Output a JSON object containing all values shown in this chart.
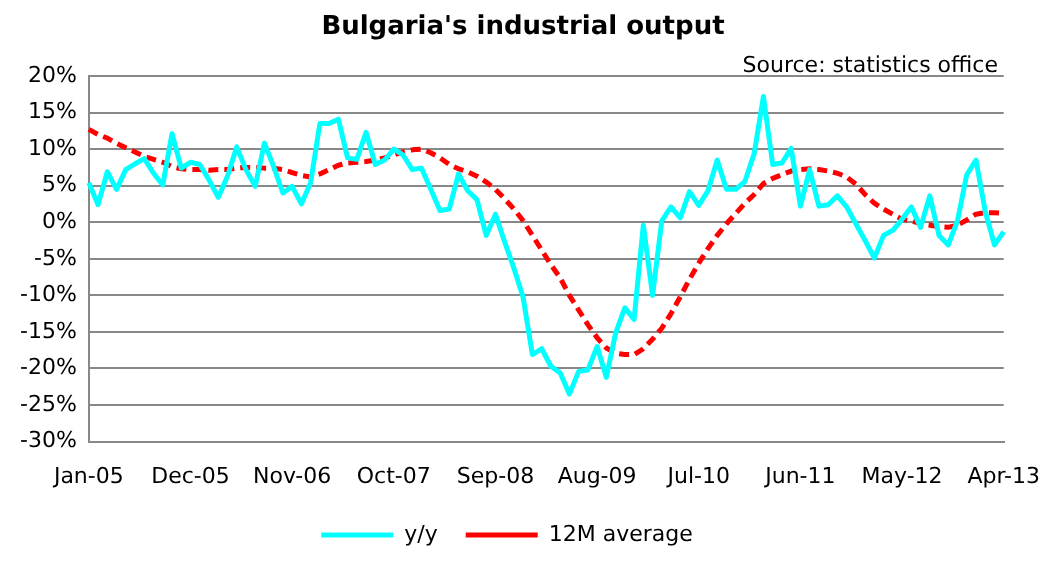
{
  "chart_data": {
    "type": "line",
    "title": "Bulgaria's industrial output",
    "annotations": [
      "Source: statistics office"
    ],
    "categories": [
      "Jan-05",
      null,
      null,
      null,
      null,
      null,
      null,
      null,
      null,
      null,
      null,
      "Dec-05",
      null,
      null,
      null,
      null,
      null,
      null,
      null,
      null,
      null,
      null,
      "Nov-06",
      null,
      null,
      null,
      null,
      null,
      null,
      null,
      null,
      null,
      null,
      "Oct-07",
      null,
      null,
      null,
      null,
      null,
      null,
      null,
      null,
      null,
      null,
      "Sep-08",
      null,
      null,
      null,
      null,
      null,
      null,
      null,
      null,
      null,
      null,
      "Aug-09",
      null,
      null,
      null,
      null,
      null,
      null,
      null,
      null,
      null,
      null,
      "Jul-10",
      null,
      null,
      null,
      null,
      null,
      null,
      null,
      null,
      null,
      null,
      "Jun-11",
      null,
      null,
      null,
      null,
      null,
      null,
      null,
      null,
      null,
      null,
      "May-12",
      null,
      null,
      null,
      null,
      null,
      null,
      null,
      null,
      null,
      null,
      "Apr-13"
    ],
    "series": [
      {
        "name": "y/y",
        "color": "#00ffff",
        "line_style": "solid",
        "values": [
          5.4,
          2.4,
          6.9,
          4.5,
          7.2,
          8,
          8.7,
          6.7,
          5.1,
          12.1,
          7.4,
          8.2,
          7.9,
          5.8,
          3.4,
          6.3,
          10.3,
          7.2,
          4.9,
          10.8,
          7.6,
          4,
          4.9,
          2.5,
          5.4,
          13.5,
          13.5,
          14.1,
          8.8,
          8.6,
          12.3,
          7.9,
          8.5,
          10,
          9.2,
          7.2,
          7.4,
          4.5,
          1.6,
          1.8,
          6.6,
          4.3,
          3.1,
          -1.8,
          1.1,
          -2.7,
          -6.3,
          -10.3,
          -18.1,
          -17.3,
          -19.7,
          -20.6,
          -23.5,
          -20.4,
          -20.2,
          -17,
          -21.2,
          -15.2,
          -11.7,
          -13.3,
          -0.4,
          -10,
          0.2,
          2.1,
          0.6,
          4.2,
          2.3,
          4.3,
          8.5,
          4.5,
          4.5,
          5.6,
          9.4,
          17.2,
          7.9,
          8.1,
          10.1,
          2.2,
          7.2,
          2.2,
          2.4,
          3.6,
          2.1,
          -0.2,
          -2.5,
          -4.9,
          -1.8,
          -1.1,
          0.4,
          2.1,
          -0.7,
          3.6,
          -1.8,
          -3.1,
          0.2,
          6.5,
          8.5,
          1.5,
          -3.1,
          -1.3
        ]
      },
      {
        "name": "12M average",
        "color": "#ff0000",
        "line_style": "dashed",
        "values": [
          12.7,
          12,
          11.5,
          10.8,
          10.2,
          9.6,
          9,
          8.6,
          8.2,
          7.6,
          7.3,
          7.2,
          7.2,
          7.1,
          7.2,
          7.2,
          7.4,
          7.5,
          7.5,
          7.4,
          7.4,
          7.2,
          6.8,
          6.4,
          6.2,
          6.6,
          7.2,
          7.8,
          8.1,
          8.2,
          8.3,
          8.5,
          8.8,
          9.2,
          9.6,
          9.9,
          10,
          9.5,
          8.8,
          7.9,
          7.3,
          6.9,
          6.3,
          5.5,
          4.5,
          3.2,
          1.8,
          0.2,
          -1.8,
          -3.8,
          -5.8,
          -7.6,
          -10,
          -12,
          -14,
          -15.8,
          -17.2,
          -17.9,
          -18.1,
          -18.1,
          -17.3,
          -16,
          -14.5,
          -12.5,
          -10.2,
          -7.8,
          -5.6,
          -3.6,
          -1.8,
          -0.2,
          1.2,
          2.6,
          3.8,
          5.3,
          6,
          6.5,
          7,
          7.2,
          7.3,
          7.2,
          7,
          6.7,
          6.2,
          5.2,
          3.8,
          2.6,
          1.8,
          1.1,
          0.4,
          0.2,
          -0.2,
          -0.4,
          -0.6,
          -0.7,
          -0.4,
          0.3,
          1.1,
          1.3,
          1.3,
          1.2
        ]
      }
    ],
    "ylim": [
      -30,
      20
    ],
    "yticks": [
      {
        "value": -30,
        "label": "-30%"
      },
      {
        "value": -25,
        "label": "-25%"
      },
      {
        "value": -20,
        "label": "-20%"
      },
      {
        "value": -15,
        "label": "-15%"
      },
      {
        "value": -10,
        "label": "-10%"
      },
      {
        "value": -5,
        "label": "-5%"
      },
      {
        "value": 0,
        "label": "0%"
      },
      {
        "value": 5,
        "label": "5%"
      },
      {
        "value": 10,
        "label": "10%"
      },
      {
        "value": 15,
        "label": "15%"
      },
      {
        "value": 20,
        "label": "20%"
      }
    ],
    "grid": "y",
    "legend": "bottom",
    "marker": "none"
  }
}
